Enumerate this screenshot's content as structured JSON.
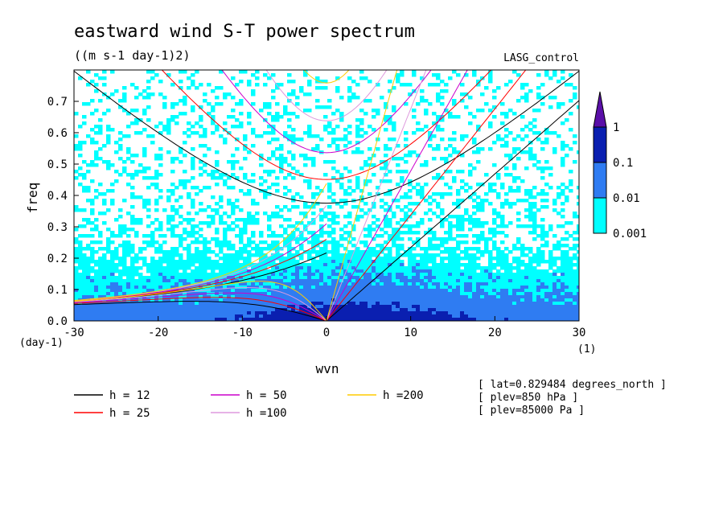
{
  "chart_data": {
    "type": "heatmap",
    "title": "eastward wind S-T power spectrum",
    "subtitle": "((m s-1 day-1)2)",
    "model_label": "LASG_control",
    "xlabel": "wvn",
    "ylabel": "freq",
    "x_unit": "(1)",
    "y_unit": "(day-1)",
    "xlim": [
      -30,
      30
    ],
    "ylim": [
      0.0,
      0.8
    ],
    "x_ticks": [
      -30,
      -20,
      -10,
      0,
      10,
      20,
      30
    ],
    "x_tick_labels": [
      "-30",
      "-20",
      "-10",
      "0",
      "10",
      "20",
      "30"
    ],
    "y_ticks": [
      0.0,
      0.1,
      0.2,
      0.3,
      0.4,
      0.5,
      0.6,
      0.7
    ],
    "y_tick_labels": [
      "0.0",
      "0.1",
      "0.2",
      "0.3",
      "0.4",
      "0.5",
      "0.6",
      "0.7"
    ],
    "colorbar": {
      "levels": [
        "1",
        "0.1",
        "0.01",
        "0.001"
      ],
      "colors": [
        "#5a0fa8",
        "#0a1fb0",
        "#2f7cf2",
        "#00ffff"
      ]
    },
    "dispersion_curves": [
      {
        "label": "h = 12",
        "h": 12,
        "color": "#000000"
      },
      {
        "label": "h = 25",
        "h": 25,
        "color": "#ff0000"
      },
      {
        "label": "h = 50",
        "h": 50,
        "color": "#cc00cc"
      },
      {
        "label": "h =100",
        "h": 100,
        "color": "#dd99dd"
      },
      {
        "label": "h =200",
        "h": 200,
        "color": "#ffcc00"
      }
    ],
    "annotations": [
      "[ lat=0.829484 degrees_north ]",
      "[ plev=850 hPa ]",
      "[ plev=85000 Pa ]"
    ]
  }
}
